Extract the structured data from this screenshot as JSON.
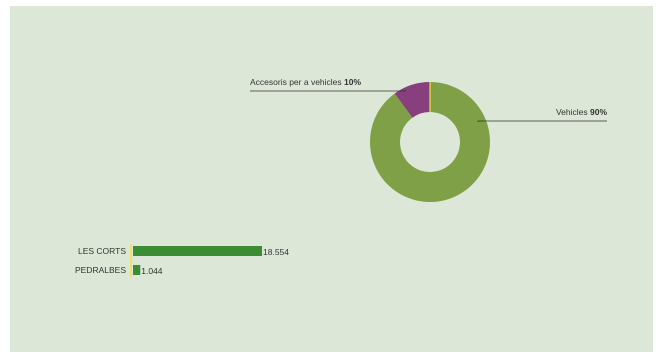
{
  "chart_data": [
    {
      "type": "pie",
      "donut": true,
      "title": "",
      "slices": [
        {
          "name": "Vehicles",
          "label": "Vehicles",
          "value": 90,
          "value_label": "90%",
          "color": "#7fa046"
        },
        {
          "name": "Accesoris per a vehicles",
          "label": "Accesoris per a vehicles",
          "value": 10,
          "value_label": "10%",
          "color": "#873f7e"
        }
      ],
      "separator_color": "#f2e23a"
    },
    {
      "type": "bar",
      "orientation": "horizontal",
      "title": "",
      "categories": [
        "LES CORTS",
        "PEDRALBES"
      ],
      "values": [
        18554,
        1044
      ],
      "value_labels": [
        "18.554",
        "1.044"
      ],
      "bar_color": "#3b8c32",
      "axis_color": "#f2e23a"
    }
  ],
  "background": "#dde7d7"
}
